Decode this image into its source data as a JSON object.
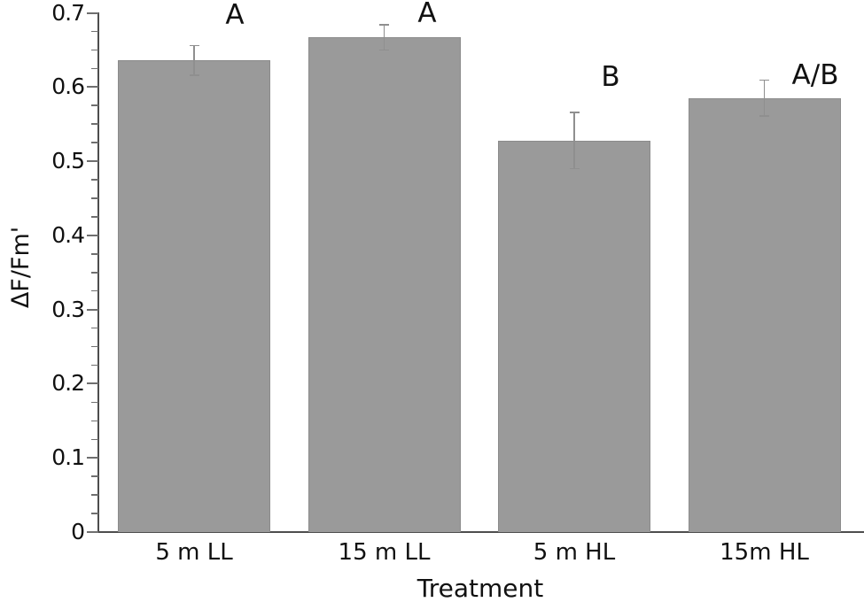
{
  "chart_data": {
    "type": "bar",
    "xlabel": "Treatment",
    "ylabel": "ΔF/Fm'",
    "categories": [
      "5 m LL",
      "15 m LL",
      "5 m HL",
      "15m HL"
    ],
    "values": [
      0.636,
      0.667,
      0.528,
      0.585
    ],
    "errors": [
      0.02,
      0.017,
      0.038,
      0.024
    ],
    "significance_letters": [
      "A",
      "A",
      "B",
      "A/B"
    ],
    "ylim": [
      0,
      0.7
    ],
    "ytick_step": 0.1,
    "yminor_step": 0.025,
    "ytick_labels": [
      "0",
      "0.1",
      "0.2",
      "0.3",
      "0.4",
      "0.5",
      "0.6",
      "0.7"
    ],
    "grid": false,
    "legend_position": "none",
    "colors": {
      "background": "#ffffff",
      "bar_fill": "#9a9a9a",
      "bar_border": "#8c8c8c",
      "error_bar": "#8f8f8f",
      "axis": "#4d4d4d",
      "tick": "#6f6f6f",
      "text": "#111111"
    }
  }
}
